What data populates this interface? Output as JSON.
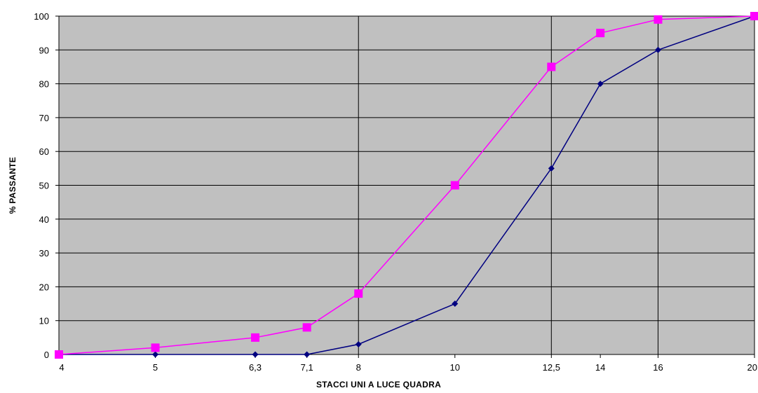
{
  "chart_data": {
    "type": "line",
    "title": "",
    "xlabel": "STACCI UNI A LUCE QUADRA",
    "ylabel": "% PASSANTE",
    "xscale": "log",
    "xlim": [
      4,
      20
    ],
    "ylim": [
      0,
      100
    ],
    "grid": {
      "vertical_at": [
        8,
        12.5,
        16
      ],
      "horizontal": true
    },
    "x_ticks": [
      {
        "value": 4,
        "label": "4"
      },
      {
        "value": 5,
        "label": "5"
      },
      {
        "value": 6.3,
        "label": "6,3"
      },
      {
        "value": 7.1,
        "label": "7,1"
      },
      {
        "value": 8,
        "label": "8"
      },
      {
        "value": 10,
        "label": "10"
      },
      {
        "value": 12.5,
        "label": "12,5"
      },
      {
        "value": 14,
        "label": "14"
      },
      {
        "value": 16,
        "label": "16"
      },
      {
        "value": 20,
        "label": "20"
      }
    ],
    "y_ticks": [
      0,
      10,
      20,
      30,
      40,
      50,
      60,
      70,
      80,
      90,
      100
    ],
    "x": [
      4,
      5,
      6.3,
      7.1,
      8,
      10,
      12.5,
      14,
      16,
      20
    ],
    "series": [
      {
        "color": "#000080",
        "marker": "diamond",
        "values": [
          0,
          0,
          0,
          0,
          3,
          15,
          55,
          80,
          90,
          100
        ]
      },
      {
        "color": "#ff00ff",
        "marker": "square",
        "values": [
          0,
          2,
          5,
          8,
          18,
          50,
          85,
          95,
          99,
          100
        ]
      }
    ],
    "plot_background": "#c0c0c0",
    "gridline_color": "#000000"
  }
}
